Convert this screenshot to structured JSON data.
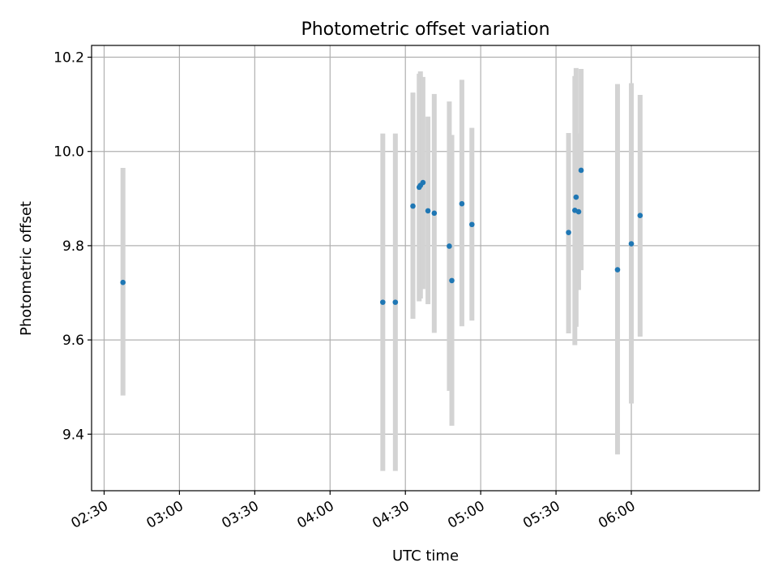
{
  "chart_data": {
    "type": "scatter",
    "title": "Photometric offset variation",
    "xlabel": "UTC time",
    "ylabel": "Photometric offset",
    "grid": true,
    "legend": "none",
    "xlim": [
      "02:25",
      "06:51"
    ],
    "ylim": [
      9.28,
      10.225
    ],
    "xticks": [
      "02:30",
      "03:00",
      "03:30",
      "04:00",
      "04:30",
      "05:00",
      "05:30",
      "06:00"
    ],
    "yticks": [
      9.4,
      9.6,
      9.8,
      10.0,
      10.2
    ],
    "colors": {
      "marker": "#1f77b4",
      "errorbar": "#d3d3d3",
      "grid": "#b0b0b0"
    },
    "series": [
      {
        "points": [
          {
            "x": "02:37:30",
            "y": 9.722,
            "ylow": 9.482,
            "yhigh": 9.965
          },
          {
            "x": "04:21:00",
            "y": 9.68,
            "ylow": 9.322,
            "yhigh": 10.038
          },
          {
            "x": "04:26:00",
            "y": 9.68,
            "ylow": 9.322,
            "yhigh": 10.038
          },
          {
            "x": "04:33:00",
            "y": 9.884,
            "ylow": 9.645,
            "yhigh": 10.125
          },
          {
            "x": "04:35:30",
            "y": 9.924,
            "ylow": 9.682,
            "yhigh": 10.165
          },
          {
            "x": "04:36:00",
            "y": 9.928,
            "ylow": 9.688,
            "yhigh": 10.17
          },
          {
            "x": "04:37:00",
            "y": 9.934,
            "ylow": 9.708,
            "yhigh": 10.158
          },
          {
            "x": "04:39:00",
            "y": 9.874,
            "ylow": 9.676,
            "yhigh": 10.074
          },
          {
            "x": "04:41:30",
            "y": 9.869,
            "ylow": 9.615,
            "yhigh": 10.122
          },
          {
            "x": "04:47:30",
            "y": 9.799,
            "ylow": 9.492,
            "yhigh": 10.106
          },
          {
            "x": "04:48:30",
            "y": 9.726,
            "ylow": 9.418,
            "yhigh": 10.035
          },
          {
            "x": "04:52:30",
            "y": 9.889,
            "ylow": 9.629,
            "yhigh": 10.152
          },
          {
            "x": "04:56:30",
            "y": 9.845,
            "ylow": 9.641,
            "yhigh": 10.05
          },
          {
            "x": "05:35:00",
            "y": 9.828,
            "ylow": 9.614,
            "yhigh": 10.039
          },
          {
            "x": "05:37:30",
            "y": 9.875,
            "ylow": 9.589,
            "yhigh": 10.16
          },
          {
            "x": "05:38:00",
            "y": 9.903,
            "ylow": 9.628,
            "yhigh": 10.177
          },
          {
            "x": "05:39:00",
            "y": 9.872,
            "ylow": 9.706,
            "yhigh": 10.038
          },
          {
            "x": "05:40:00",
            "y": 9.96,
            "ylow": 9.748,
            "yhigh": 10.175
          },
          {
            "x": "05:54:30",
            "y": 9.749,
            "ylow": 9.357,
            "yhigh": 10.143
          },
          {
            "x": "06:00:00",
            "y": 9.804,
            "ylow": 9.465,
            "yhigh": 10.145
          },
          {
            "x": "06:03:30",
            "y": 9.864,
            "ylow": 9.607,
            "yhigh": 10.12
          }
        ]
      }
    ]
  }
}
